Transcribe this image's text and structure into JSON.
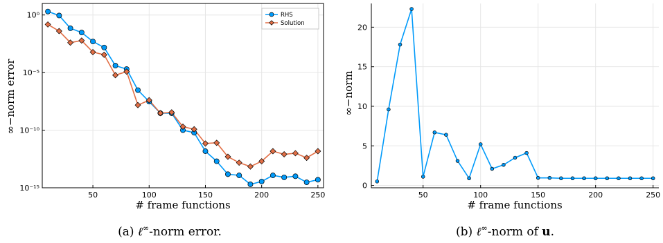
{
  "colors": {
    "rhs": "#009AFA",
    "solution": "#E26F46"
  },
  "chart_data": [
    {
      "type": "line",
      "xlabel": "# frame functions",
      "ylabel": "∞−norm error",
      "yscale": "log",
      "xlim": [
        5,
        255
      ],
      "ylim": [
        1e-15,
        10
      ],
      "xticks": [
        50,
        100,
        150,
        200,
        250
      ],
      "yticks": [
        {
          "value": 1,
          "label": "10⁰"
        },
        {
          "value": 1e-05,
          "label": "10⁻⁵"
        },
        {
          "value": 1e-10,
          "label": "10⁻¹⁰"
        },
        {
          "value": 1e-15,
          "label": "10⁻¹⁵"
        }
      ],
      "grid": true,
      "legend": "top-right",
      "x": [
        10,
        20,
        30,
        40,
        50,
        60,
        70,
        80,
        90,
        100,
        110,
        120,
        130,
        140,
        150,
        160,
        170,
        180,
        190,
        200,
        210,
        220,
        230,
        240,
        250
      ],
      "series": [
        {
          "name": "RHS",
          "marker": "circle",
          "values": [
            2,
            0.9,
            0.07,
            0.03,
            0.005,
            0.0015,
            4e-05,
            2e-05,
            3e-07,
            3e-08,
            3e-09,
            3e-09,
            1e-10,
            6e-11,
            1.5e-12,
            2e-13,
            1.5e-14,
            1.2e-14,
            2e-15,
            3.5e-15,
            1.2e-14,
            8e-15,
            1e-14,
            3e-15,
            5e-15
          ]
        },
        {
          "name": "Solution",
          "marker": "diamond",
          "values": [
            0.15,
            0.04,
            0.004,
            0.006,
            0.0006,
            0.00035,
            6e-06,
            1.2e-05,
            1.5e-08,
            4e-08,
            3e-09,
            3.5e-09,
            2e-10,
            1.2e-10,
            7e-12,
            8e-12,
            5e-13,
            1.5e-13,
            7e-14,
            2e-13,
            1.5e-12,
            8e-13,
            1e-12,
            4e-13,
            1.5e-12
          ]
        }
      ]
    },
    {
      "type": "line",
      "xlabel": "# frame functions",
      "ylabel": "∞−norm",
      "xlim": [
        5,
        255
      ],
      "ylim": [
        -0.3,
        23
      ],
      "xticks": [
        50,
        100,
        150,
        200,
        250
      ],
      "yticks": [
        0,
        5,
        10,
        15,
        20
      ],
      "grid": true,
      "x": [
        10,
        20,
        30,
        40,
        50,
        60,
        70,
        80,
        90,
        100,
        110,
        120,
        130,
        140,
        150,
        160,
        170,
        180,
        190,
        200,
        210,
        220,
        230,
        240,
        250
      ],
      "series": [
        {
          "marker": "circle",
          "values": [
            0.5,
            9.6,
            17.8,
            22.3,
            1.1,
            6.7,
            6.4,
            3.1,
            0.9,
            5.2,
            2.1,
            2.6,
            3.5,
            4.1,
            0.95,
            0.95,
            0.9,
            0.9,
            0.9,
            0.9,
            0.9,
            0.9,
            0.9,
            0.9,
            0.9
          ]
        }
      ]
    }
  ],
  "captions": {
    "a": "(a) ℓ∞-norm error.",
    "b": "(b) ℓ∞-norm of u."
  }
}
